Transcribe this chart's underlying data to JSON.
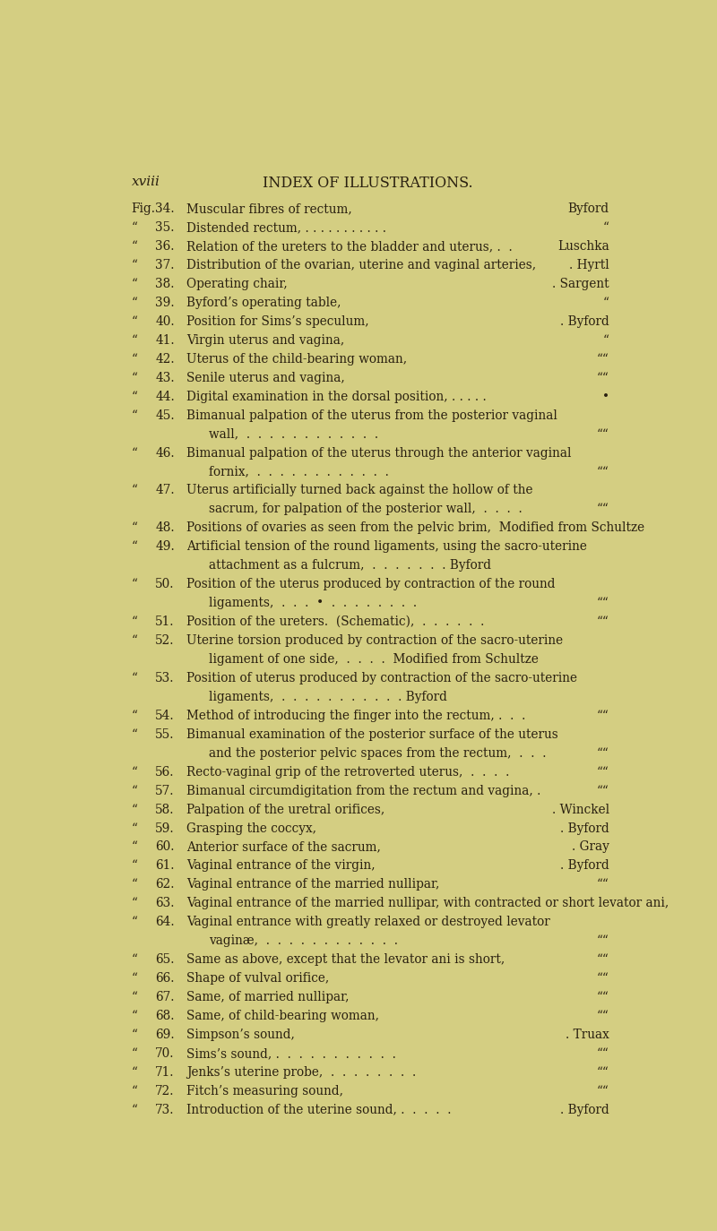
{
  "background_color": "#d4ce82",
  "text_color": "#2a2010",
  "page_label": "xviii",
  "title": "INDEX OF ILLUSTRATIONS.",
  "entries": [
    {
      "prefix": "Fig.",
      "num": "34.",
      "text": "Muscular fibres of rectum,",
      "dots": ". . . . . . .",
      "attribution": "Byford"
    },
    {
      "prefix": "“",
      "num": "35.",
      "text": "Distended rectum, . . . . . . . . . . .",
      "dots": "",
      "attribution": "“"
    },
    {
      "prefix": "“",
      "num": "36.",
      "text": "Relation of the ureters to the bladder and uterus, .  .",
      "dots": "",
      "attribution": "Luschka"
    },
    {
      "prefix": "“",
      "num": "37.",
      "text": "Distribution of the ovarian, uterine and vaginal arteries,",
      "dots": "",
      "attribution": ". Hyrtl"
    },
    {
      "prefix": "“",
      "num": "38.",
      "text": "Operating chair,",
      "dots": ". . . . . . . . . .",
      "attribution": ". Sargent"
    },
    {
      "prefix": "“",
      "num": "39.",
      "text": "Byford’s operating table,",
      "dots": ". . . . . . . . .",
      "attribution": "“"
    },
    {
      "prefix": "“",
      "num": "40.",
      "text": "Position for Sims’s speculum,",
      "dots": ". . . . . . .",
      "attribution": ". Byford"
    },
    {
      "prefix": "“",
      "num": "41.",
      "text": "Virgin uterus and vagina,",
      "dots": ". . . . . . . . .",
      "attribution": "“"
    },
    {
      "prefix": "“",
      "num": "42.",
      "text": "Uterus of the child-bearing woman,",
      "dots": ". . . . . .",
      "attribution": "““"
    },
    {
      "prefix": "“",
      "num": "43.",
      "text": "Senile uterus and vagina,",
      "dots": ". . . . . . . . .",
      "attribution": "““"
    },
    {
      "prefix": "“",
      "num": "44.",
      "text": "Digital examination in the dorsal position, . . . . .",
      "dots": "",
      "attribution": "•"
    },
    {
      "prefix": "“",
      "num": "45.",
      "text": "Bimanual palpation of the uterus from the posterior vaginal",
      "dots": "",
      "attribution": "",
      "cont": "wall,  .  .  .  .  .  .  .  .  .  .  .  .",
      "cont_attr": "““"
    },
    {
      "prefix": "“",
      "num": "46.",
      "text": "Bimanual palpation of the uterus through the anterior vaginal",
      "dots": "",
      "attribution": "",
      "cont": "fornix,  .  .  .  .  .  .  .  .  .  .  .  .",
      "cont_attr": "““"
    },
    {
      "prefix": "“",
      "num": "47.",
      "text": "Uterus artificially turned back against the hollow of the",
      "dots": "",
      "attribution": "",
      "cont": "sacrum, for palpation of the posterior wall,  .  .  .  .",
      "cont_attr": "““"
    },
    {
      "prefix": "“",
      "num": "48.",
      "text": "Positions of ovaries as seen from the pelvic brim,  Modified from Schultze",
      "dots": "",
      "attribution": ""
    },
    {
      "prefix": "“",
      "num": "49.",
      "text": "Artificial tension of the round ligaments, using the sacro-uterine",
      "dots": "",
      "attribution": "",
      "cont": "attachment as a fulcrum,  .  .  .  .  .  .  . Byford",
      "cont_attr": ""
    },
    {
      "prefix": "“",
      "num": "50.",
      "text": "Position of the uterus produced by contraction of the round",
      "dots": "",
      "attribution": "",
      "cont": "ligaments,  .  .  .  •  .  .  .  .  .  .  .  .",
      "cont_attr": "““"
    },
    {
      "prefix": "“",
      "num": "51.",
      "text": "Position of the ureters.  (Schematic),  .  .  .  .  .  .",
      "dots": "",
      "attribution": "““"
    },
    {
      "prefix": "“",
      "num": "52.",
      "text": "Uterine torsion produced by contraction of the sacro-uterine",
      "dots": "",
      "attribution": "",
      "cont": "ligament of one side,  .  .  .  .  Modified from Schultze",
      "cont_attr": ""
    },
    {
      "prefix": "“",
      "num": "53.",
      "text": "Position of uterus produced by contraction of the sacro-uterine",
      "dots": "",
      "attribution": "",
      "cont": "ligaments,  .  .  .  .  .  .  .  .  .  .  . Byford",
      "cont_attr": ""
    },
    {
      "prefix": "“",
      "num": "54.",
      "text": "Method of introducing the finger into the rectum, .  .  .",
      "dots": "",
      "attribution": "““"
    },
    {
      "prefix": "“",
      "num": "55.",
      "text": "Bimanual examination of the posterior surface of the uterus",
      "dots": "",
      "attribution": "",
      "cont": "and the posterior pelvic spaces from the rectum,  .  .  .",
      "cont_attr": "““"
    },
    {
      "prefix": "“",
      "num": "56.",
      "text": "Recto-vaginal grip of the retroverted uterus,  .  .  .  .",
      "dots": "",
      "attribution": "““"
    },
    {
      "prefix": "“",
      "num": "57.",
      "text": "Bimanual circumdigitation from the rectum and vagina, .",
      "dots": "",
      "attribution": "““"
    },
    {
      "prefix": "“",
      "num": "58.",
      "text": "Palpation of the uretral orifices,",
      "dots": ". . . . . . .",
      "attribution": ". Winckel"
    },
    {
      "prefix": "“",
      "num": "59.",
      "text": "Grasping the coccyx,",
      "dots": ". . . . . . . . .",
      "attribution": ". Byford"
    },
    {
      "prefix": "“",
      "num": "60.",
      "text": "Anterior surface of the sacrum,",
      "dots": ". . . . . . .",
      "attribution": ". Gray"
    },
    {
      "prefix": "“",
      "num": "61.",
      "text": "Vaginal entrance of the virgin,",
      "dots": ". . . . . . . .",
      "attribution": ". Byford"
    },
    {
      "prefix": "“",
      "num": "62.",
      "text": "Vaginal entrance of the married nullipar,",
      "dots": ". . . . . .",
      "attribution": "““"
    },
    {
      "prefix": "“",
      "num": "63.",
      "text": "Vaginal entrance of the married nullipar, with contracted or short levator ani,",
      "dots": "",
      "attribution": ""
    },
    {
      "prefix": "“",
      "num": "64.",
      "text": "Vaginal entrance with greatly relaxed or destroyed levator",
      "dots": "",
      "attribution": "",
      "cont": "vaginæ,  .  .  .  .  .  .  .  .  .  .  .  .",
      "cont_attr": "““"
    },
    {
      "prefix": "“",
      "num": "65.",
      "text": "Same as above, except that the levator ani is short,",
      "dots": "",
      "attribution": "““"
    },
    {
      "prefix": "“",
      "num": "66.",
      "text": "Shape of vulval orifice,",
      "dots": ". . . . . . . . .",
      "attribution": "““"
    },
    {
      "prefix": "“",
      "num": "67.",
      "text": "Same, of married nullipar,",
      "dots": ". . . . . . . .",
      "attribution": "““"
    },
    {
      "prefix": "“",
      "num": "68.",
      "text": "Same, of child-bearing woman,",
      "dots": ". . . . . . .",
      "attribution": "““"
    },
    {
      "prefix": "“",
      "num": "69.",
      "text": "Simpson’s sound,",
      "dots": ". . . . . . . . .",
      "attribution": ". Truax"
    },
    {
      "prefix": "“",
      "num": "70.",
      "text": "Sims’s sound, .  .  .  .  .  .  .  .  .  .  .",
      "dots": "",
      "attribution": "““"
    },
    {
      "prefix": "“",
      "num": "71.",
      "text": "Jenks’s uterine probe,  .  .  .  .  .  .  .  .",
      "dots": "",
      "attribution": "““"
    },
    {
      "prefix": "“",
      "num": "72.",
      "text": "Fitch’s measuring sound,",
      "dots": ". . . . . . . .",
      "attribution": "““"
    },
    {
      "prefix": "“",
      "num": "73.",
      "text": "Introduction of the uterine sound, .  .  .  .  .",
      "dots": "",
      "attribution": ". Byford"
    }
  ]
}
